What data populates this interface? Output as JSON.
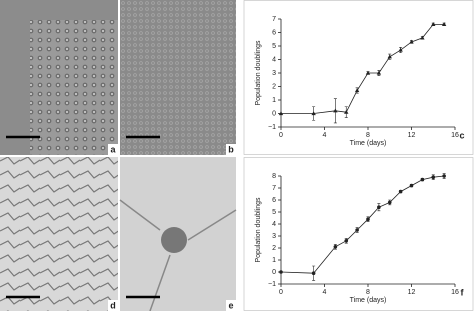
{
  "images": [
    {
      "label": "a"
    },
    {
      "label": "b"
    },
    {
      "label": "d"
    },
    {
      "label": "e"
    }
  ],
  "chart_data": [
    {
      "type": "line",
      "panel": "c",
      "x_label": "Time (days)",
      "y_label": "Population doublings",
      "marker": "triangle",
      "color": "#222222",
      "x": [
        0,
        3,
        5,
        6,
        7,
        8,
        9,
        10,
        11,
        12,
        13,
        14,
        15
      ],
      "values": [
        0,
        0,
        0.2,
        0.1,
        1.7,
        3.0,
        3.0,
        4.2,
        4.7,
        5.3,
        5.6,
        6.6,
        6.6
      ],
      "errors": [
        0,
        0.5,
        0.9,
        0.4,
        0.2,
        0.1,
        0.2,
        0.2,
        0.2,
        0.1,
        0.1,
        0.1,
        0.1
      ],
      "xlim": [
        0,
        16
      ],
      "xticks": [
        0,
        4,
        8,
        12,
        16
      ],
      "ylim": [
        -1,
        7
      ],
      "yticks": [
        {
          "value": -1,
          "label": "−1"
        },
        0,
        1,
        2,
        3,
        4,
        5,
        6,
        7
      ]
    },
    {
      "type": "line",
      "panel": "f",
      "x_label": "Time (days)",
      "y_label": "Population doublings",
      "marker": "circle",
      "color": "#222222",
      "x": [
        0,
        3,
        5,
        6,
        7,
        8,
        9,
        10,
        11,
        12,
        13,
        14,
        15
      ],
      "values": [
        0,
        -0.1,
        2.1,
        2.6,
        3.5,
        4.4,
        5.4,
        5.8,
        6.7,
        7.2,
        7.7,
        7.9,
        8.0
      ],
      "errors": [
        0,
        0.6,
        0.2,
        0.2,
        0.2,
        0.2,
        0.3,
        0.2,
        0.1,
        0.1,
        0.1,
        0.2,
        0.2
      ],
      "xlim": [
        0,
        16
      ],
      "xticks": [
        0,
        4,
        8,
        12,
        16
      ],
      "ylim": [
        -1,
        8
      ],
      "yticks": [
        {
          "value": -1,
          "label": "−1"
        },
        0,
        1,
        2,
        3,
        4,
        5,
        6,
        7,
        8
      ]
    }
  ]
}
